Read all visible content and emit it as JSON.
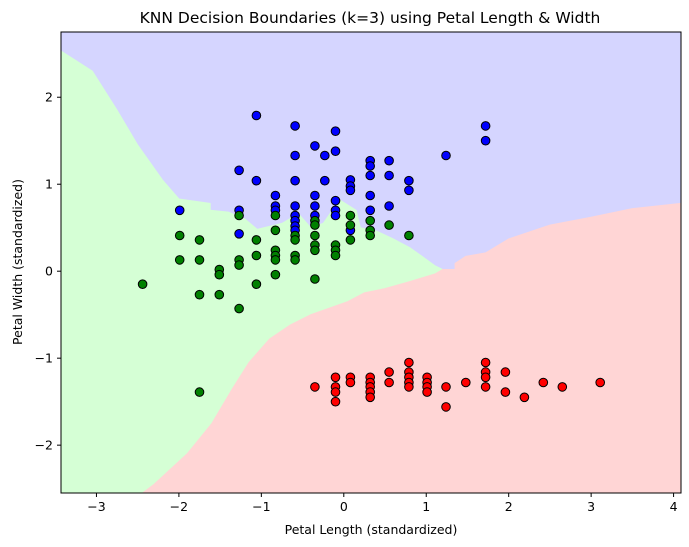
{
  "chart_data": {
    "type": "scatter",
    "title": "KNN Decision Boundaries (k=3) using Petal Length & Width",
    "xlabel": "Petal Length (standardized)",
    "ylabel": "Petal Width (standardized)",
    "xlim": [
      -3.43,
      4.09
    ],
    "ylim": [
      -2.55,
      2.75
    ],
    "xticks": [
      -3,
      -2,
      -1,
      0,
      1,
      2,
      3,
      4
    ],
    "yticks": [
      -2,
      -1,
      0,
      1,
      2
    ],
    "grid": false,
    "regions": [
      {
        "class": "blue",
        "color": "#d5d5ff",
        "polygon": [
          [
            -3.43,
            2.75
          ],
          [
            4.09,
            2.75
          ],
          [
            4.09,
            0.78
          ],
          [
            3.5,
            0.72
          ],
          [
            3.0,
            0.62
          ],
          [
            2.5,
            0.53
          ],
          [
            2.0,
            0.37
          ],
          [
            1.72,
            0.21
          ],
          [
            1.48,
            0.17
          ],
          [
            1.35,
            0.09
          ],
          [
            1.35,
            0.02
          ],
          [
            1.2,
            0.02
          ],
          [
            1.11,
            0.06
          ],
          [
            0.95,
            0.17
          ],
          [
            0.8,
            0.27
          ],
          [
            0.6,
            0.37
          ],
          [
            0.4,
            0.46
          ],
          [
            0.2,
            0.5
          ],
          [
            0.15,
            0.7
          ],
          [
            -0.05,
            0.82
          ],
          [
            -0.25,
            0.55
          ],
          [
            -0.4,
            0.5
          ],
          [
            -0.55,
            0.66
          ],
          [
            -0.75,
            0.55
          ],
          [
            -1.05,
            0.48
          ],
          [
            -1.2,
            0.6
          ],
          [
            -1.4,
            0.68
          ],
          [
            -1.62,
            0.7
          ],
          [
            -1.62,
            0.78
          ],
          [
            -2.0,
            0.83
          ],
          [
            -2.2,
            1.05
          ],
          [
            -2.5,
            1.45
          ],
          [
            -2.75,
            1.85
          ],
          [
            -3.05,
            2.3
          ],
          [
            -3.43,
            2.53
          ]
        ]
      },
      {
        "class": "green",
        "color": "#d5ffd5",
        "polygon": [
          [
            -3.43,
            2.53
          ],
          [
            -3.05,
            2.3
          ],
          [
            -2.75,
            1.85
          ],
          [
            -2.5,
            1.45
          ],
          [
            -2.2,
            1.05
          ],
          [
            -2.0,
            0.83
          ],
          [
            -1.62,
            0.78
          ],
          [
            -1.62,
            0.7
          ],
          [
            -1.4,
            0.68
          ],
          [
            -1.2,
            0.6
          ],
          [
            -1.05,
            0.48
          ],
          [
            -0.75,
            0.55
          ],
          [
            -0.55,
            0.66
          ],
          [
            -0.4,
            0.5
          ],
          [
            -0.25,
            0.55
          ],
          [
            -0.05,
            0.82
          ],
          [
            0.15,
            0.7
          ],
          [
            0.2,
            0.5
          ],
          [
            0.4,
            0.46
          ],
          [
            0.6,
            0.37
          ],
          [
            0.8,
            0.27
          ],
          [
            0.95,
            0.17
          ],
          [
            1.11,
            0.06
          ],
          [
            1.2,
            0.02
          ],
          [
            1.11,
            -0.03
          ],
          [
            0.8,
            -0.12
          ],
          [
            0.5,
            -0.2
          ],
          [
            0.25,
            -0.25
          ],
          [
            0.05,
            -0.35
          ],
          [
            -0.4,
            -0.5
          ],
          [
            -0.65,
            -0.62
          ],
          [
            -0.9,
            -0.78
          ],
          [
            -1.15,
            -1.05
          ],
          [
            -1.35,
            -1.35
          ],
          [
            -1.6,
            -1.75
          ],
          [
            -1.9,
            -2.1
          ],
          [
            -2.3,
            -2.45
          ],
          [
            -2.44,
            -2.55
          ],
          [
            -3.43,
            -2.55
          ]
        ]
      },
      {
        "class": "red",
        "color": "#ffd5d5",
        "polygon": [
          [
            -2.44,
            -2.55
          ],
          [
            -2.3,
            -2.45
          ],
          [
            -1.9,
            -2.1
          ],
          [
            -1.6,
            -1.75
          ],
          [
            -1.35,
            -1.35
          ],
          [
            -1.15,
            -1.05
          ],
          [
            -0.9,
            -0.78
          ],
          [
            -0.65,
            -0.62
          ],
          [
            -0.4,
            -0.5
          ],
          [
            0.05,
            -0.35
          ],
          [
            0.25,
            -0.25
          ],
          [
            0.5,
            -0.2
          ],
          [
            0.8,
            -0.12
          ],
          [
            1.11,
            -0.03
          ],
          [
            1.2,
            0.02
          ],
          [
            1.35,
            0.02
          ],
          [
            1.35,
            0.09
          ],
          [
            1.48,
            0.17
          ],
          [
            1.72,
            0.21
          ],
          [
            2.0,
            0.37
          ],
          [
            2.5,
            0.53
          ],
          [
            3.0,
            0.62
          ],
          [
            3.5,
            0.72
          ],
          [
            4.09,
            0.78
          ],
          [
            4.09,
            -2.55
          ]
        ]
      }
    ],
    "series": [
      {
        "color": "#0000ff",
        "points": [
          [
            -1.06,
            1.79
          ],
          [
            -0.59,
            1.67
          ],
          [
            -0.1,
            1.61
          ],
          [
            1.72,
            1.67
          ],
          [
            1.72,
            1.5
          ],
          [
            -0.35,
            1.44
          ],
          [
            -0.59,
            1.33
          ],
          [
            -0.23,
            1.33
          ],
          [
            -0.1,
            1.38
          ],
          [
            1.24,
            1.33
          ],
          [
            0.32,
            1.27
          ],
          [
            0.32,
            1.21
          ],
          [
            0.55,
            1.27
          ],
          [
            -1.27,
            1.16
          ],
          [
            0.08,
            1.05
          ],
          [
            0.32,
            1.1
          ],
          [
            0.55,
            1.1
          ],
          [
            -1.06,
            1.04
          ],
          [
            -0.59,
            1.04
          ],
          [
            -0.23,
            1.04
          ],
          [
            0.08,
            0.98
          ],
          [
            0.79,
            1.04
          ],
          [
            0.79,
            0.93
          ],
          [
            -0.83,
            0.87
          ],
          [
            -0.35,
            0.87
          ],
          [
            0.08,
            0.93
          ],
          [
            0.32,
            0.87
          ],
          [
            -0.83,
            0.75
          ],
          [
            -0.59,
            0.75
          ],
          [
            -0.35,
            0.75
          ],
          [
            0.55,
            0.75
          ],
          [
            -0.1,
            0.81
          ],
          [
            -0.1,
            0.7
          ],
          [
            -0.83,
            0.7
          ],
          [
            -1.27,
            0.7
          ],
          [
            -1.27,
            0.43
          ],
          [
            -1.99,
            0.7
          ],
          [
            -0.59,
            0.64
          ],
          [
            -0.59,
            0.58
          ],
          [
            -0.35,
            0.64
          ],
          [
            -0.1,
            0.64
          ],
          [
            0.32,
            0.7
          ],
          [
            -0.59,
            0.52
          ],
          [
            -0.59,
            0.47
          ],
          [
            0.08,
            0.47
          ]
        ]
      },
      {
        "color": "#008000",
        "points": [
          [
            -1.27,
            0.64
          ],
          [
            -0.83,
            0.64
          ],
          [
            -0.35,
            0.58
          ],
          [
            0.08,
            0.64
          ],
          [
            0.32,
            0.58
          ],
          [
            0.55,
            0.53
          ],
          [
            -0.35,
            0.53
          ],
          [
            0.08,
            0.53
          ],
          [
            0.32,
            0.47
          ],
          [
            -0.83,
            0.47
          ],
          [
            -0.59,
            0.41
          ],
          [
            -0.35,
            0.41
          ],
          [
            0.08,
            0.36
          ],
          [
            0.32,
            0.41
          ],
          [
            0.79,
            0.41
          ],
          [
            -1.99,
            0.41
          ],
          [
            -1.75,
            0.36
          ],
          [
            -1.06,
            0.36
          ],
          [
            -0.59,
            0.36
          ],
          [
            -0.35,
            0.3
          ],
          [
            -0.1,
            0.3
          ],
          [
            -0.83,
            0.24
          ],
          [
            -0.35,
            0.24
          ],
          [
            -0.1,
            0.24
          ],
          [
            -1.06,
            0.18
          ],
          [
            -0.83,
            0.18
          ],
          [
            -0.59,
            0.18
          ],
          [
            -0.1,
            0.18
          ],
          [
            -1.99,
            0.13
          ],
          [
            -1.75,
            0.13
          ],
          [
            -1.27,
            0.13
          ],
          [
            -0.83,
            0.13
          ],
          [
            -0.59,
            0.13
          ],
          [
            -1.27,
            0.07
          ],
          [
            -1.51,
            0.02
          ],
          [
            -1.51,
            -0.04
          ],
          [
            -0.83,
            -0.04
          ],
          [
            -2.44,
            -0.15
          ],
          [
            -1.06,
            -0.15
          ],
          [
            -0.35,
            -0.09
          ],
          [
            -1.75,
            -0.27
          ],
          [
            -1.51,
            -0.27
          ],
          [
            -1.27,
            -0.43
          ],
          [
            -1.75,
            -1.39
          ]
        ]
      },
      {
        "color": "#ff0000",
        "points": [
          [
            0.79,
            -1.05
          ],
          [
            1.72,
            -1.05
          ],
          [
            0.55,
            -1.16
          ],
          [
            0.79,
            -1.16
          ],
          [
            1.72,
            -1.16
          ],
          [
            1.96,
            -1.16
          ],
          [
            -0.1,
            -1.22
          ],
          [
            0.08,
            -1.22
          ],
          [
            0.32,
            -1.22
          ],
          [
            0.79,
            -1.22
          ],
          [
            1.01,
            -1.22
          ],
          [
            1.72,
            -1.22
          ],
          [
            0.08,
            -1.28
          ],
          [
            0.32,
            -1.28
          ],
          [
            0.55,
            -1.28
          ],
          [
            0.79,
            -1.28
          ],
          [
            1.01,
            -1.28
          ],
          [
            1.48,
            -1.28
          ],
          [
            2.42,
            -1.28
          ],
          [
            3.11,
            -1.28
          ],
          [
            -0.35,
            -1.33
          ],
          [
            -0.1,
            -1.33
          ],
          [
            0.32,
            -1.33
          ],
          [
            0.79,
            -1.33
          ],
          [
            1.01,
            -1.33
          ],
          [
            1.24,
            -1.33
          ],
          [
            1.72,
            -1.33
          ],
          [
            2.65,
            -1.33
          ],
          [
            -0.1,
            -1.39
          ],
          [
            0.32,
            -1.39
          ],
          [
            1.01,
            -1.39
          ],
          [
            1.96,
            -1.39
          ],
          [
            0.32,
            -1.45
          ],
          [
            2.19,
            -1.45
          ],
          [
            -0.1,
            -1.5
          ],
          [
            1.24,
            -1.56
          ]
        ]
      }
    ]
  }
}
